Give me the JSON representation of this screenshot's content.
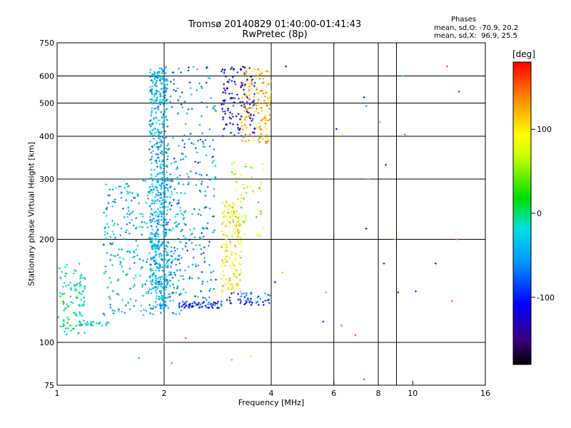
{
  "title_line1": "Tromsø 20140829 01:40:00-01:41:43",
  "title_line2": "RwPretec (8p)",
  "annotation": {
    "title": "Phases",
    "line_o": "mean, sd,O: -70.9, 20.2",
    "line_x": "mean, sd,X:  96.9, 25.5"
  },
  "colorbar": {
    "unit": "[deg]",
    "range": [
      -180,
      180
    ],
    "ticks": [
      {
        "value": 100,
        "label": "100"
      },
      {
        "value": 0,
        "label": "0"
      },
      {
        "value": -100,
        "label": "-100"
      }
    ]
  },
  "chart_data": {
    "type": "scatter",
    "xlabel": "Frequency [MHz]",
    "ylabel": "Stationary phase Virtual Height [km]",
    "xscale": "log",
    "yscale": "log",
    "xlim": [
      1,
      16
    ],
    "ylim": [
      75,
      750
    ],
    "xticks": [
      1,
      2,
      4,
      6,
      8,
      10,
      16
    ],
    "yticks": [
      75,
      100,
      200,
      300,
      400,
      500,
      600,
      750
    ],
    "xgrid": [
      2,
      4,
      6,
      8,
      9
    ],
    "ygrid": [
      100,
      200,
      300,
      400,
      500,
      600
    ],
    "clusters": [
      {
        "x": [
          1.0,
          1.2
        ],
        "y": [
          105,
          170
        ],
        "phase": -10,
        "note_count": 110
      },
      {
        "x": [
          1.15,
          1.4
        ],
        "y": [
          112,
          115
        ],
        "phase": -15,
        "note_count": 25
      },
      {
        "x": [
          1.35,
          2.3
        ],
        "y": [
          120,
          300
        ],
        "phase": -40,
        "note_count": 350
      },
      {
        "x": [
          1.82,
          2.05
        ],
        "y": [
          125,
          640
        ],
        "phase": -45,
        "note_count": 600
      },
      {
        "x": [
          2.05,
          2.8
        ],
        "y": [
          130,
          640
        ],
        "phase": -60,
        "note_count": 250
      },
      {
        "x": [
          2.2,
          2.9
        ],
        "y": [
          126,
          132
        ],
        "phase": -100,
        "note_count": 60
      },
      {
        "x": [
          2.9,
          3.3
        ],
        "y": [
          140,
          260
        ],
        "phase": 100,
        "note_count": 150
      },
      {
        "x": [
          3.1,
          3.8
        ],
        "y": [
          200,
          340
        ],
        "phase": 60,
        "note_count": 60
      },
      {
        "x": [
          3.3,
          4.0
        ],
        "y": [
          380,
          640
        ],
        "phase": 120,
        "note_count": 160
      },
      {
        "x": [
          2.9,
          3.6
        ],
        "y": [
          400,
          640
        ],
        "phase": -110,
        "note_count": 120
      },
      {
        "x": [
          3.0,
          4.0
        ],
        "y": [
          128,
          140
        ],
        "phase": -90,
        "note_count": 50
      }
    ],
    "sparse_points": [
      {
        "x": 4.4,
        "y": 640,
        "phase": -120
      },
      {
        "x": 7.3,
        "y": 520,
        "phase": -100
      },
      {
        "x": 7.4,
        "y": 490,
        "phase": -60
      },
      {
        "x": 8.1,
        "y": 440,
        "phase": 130
      },
      {
        "x": 9.5,
        "y": 405,
        "phase": -50
      },
      {
        "x": 9.4,
        "y": 600,
        "phase": -40
      },
      {
        "x": 12.5,
        "y": 640,
        "phase": 150
      },
      {
        "x": 13.5,
        "y": 540,
        "phase": -80
      },
      {
        "x": 6.1,
        "y": 420,
        "phase": -110
      },
      {
        "x": 7.5,
        "y": 300,
        "phase": -40
      },
      {
        "x": 8.4,
        "y": 330,
        "phase": -110
      },
      {
        "x": 7.4,
        "y": 215,
        "phase": -110
      },
      {
        "x": 8.3,
        "y": 170,
        "phase": -100
      },
      {
        "x": 8.9,
        "y": 200,
        "phase": 140
      },
      {
        "x": 11.6,
        "y": 170,
        "phase": -100
      },
      {
        "x": 9.1,
        "y": 140,
        "phase": -100
      },
      {
        "x": 10.2,
        "y": 141,
        "phase": -90
      },
      {
        "x": 12.9,
        "y": 132,
        "phase": 150
      },
      {
        "x": 13.3,
        "y": 200,
        "phase": 150
      },
      {
        "x": 5.6,
        "y": 115,
        "phase": -90
      },
      {
        "x": 5.7,
        "y": 140,
        "phase": 130
      },
      {
        "x": 6.3,
        "y": 112,
        "phase": 140
      },
      {
        "x": 6.9,
        "y": 105,
        "phase": 160
      },
      {
        "x": 7.3,
        "y": 78,
        "phase": 160
      },
      {
        "x": 1.7,
        "y": 90,
        "phase": -40
      },
      {
        "x": 2.0,
        "y": 100,
        "phase": -60
      },
      {
        "x": 2.1,
        "y": 87,
        "phase": 140
      },
      {
        "x": 2.3,
        "y": 103,
        "phase": 150
      },
      {
        "x": 3.1,
        "y": 89,
        "phase": 130
      },
      {
        "x": 3.5,
        "y": 91,
        "phase": 100
      },
      {
        "x": 4.3,
        "y": 160,
        "phase": 120
      },
      {
        "x": 4.1,
        "y": 150,
        "phase": -100
      }
    ]
  }
}
